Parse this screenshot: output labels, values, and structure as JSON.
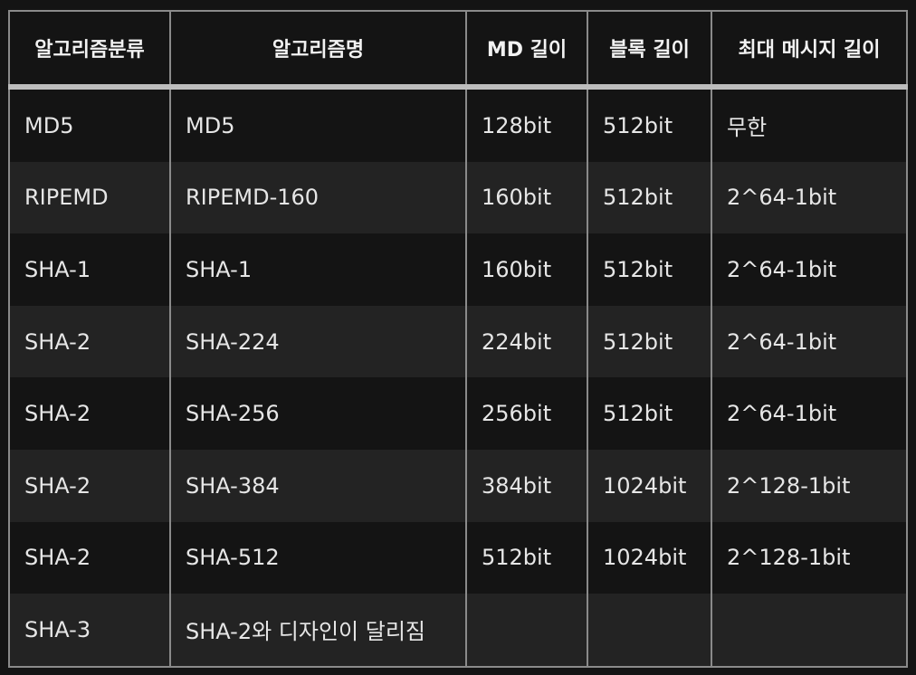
{
  "table": {
    "headers": [
      "알고리즘분류",
      "알고리즘명",
      "MD 길이",
      "블록 길이",
      "최대 메시지 길이"
    ],
    "rows": [
      [
        "MD5",
        "MD5",
        "128bit",
        "512bit",
        "무한"
      ],
      [
        "RIPEMD",
        "RIPEMD-160",
        "160bit",
        "512bit",
        "2^64-1bit"
      ],
      [
        "SHA-1",
        "SHA-1",
        "160bit",
        "512bit",
        "2^64-1bit"
      ],
      [
        "SHA-2",
        "SHA-224",
        "224bit",
        "512bit",
        "2^64-1bit"
      ],
      [
        "SHA-2",
        "SHA-256",
        "256bit",
        "512bit",
        "2^64-1bit"
      ],
      [
        "SHA-2",
        "SHA-384",
        "384bit",
        "1024bit",
        "2^128-1bit"
      ],
      [
        "SHA-2",
        "SHA-512",
        "512bit",
        "1024bit",
        "2^128-1bit"
      ],
      [
        "SHA-3",
        "SHA-2와 디자인이 달리짐",
        "",
        "",
        ""
      ]
    ]
  }
}
